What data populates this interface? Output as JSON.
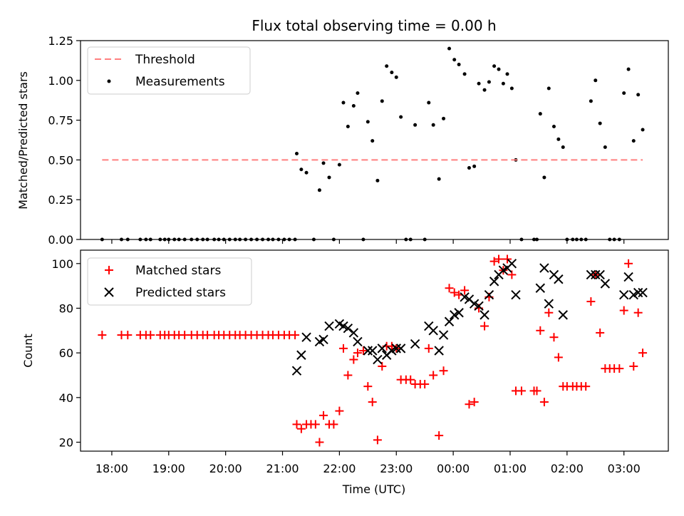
{
  "figure": {
    "title": "Flux total observing time = 0.00 h"
  },
  "chart_data": [
    {
      "type": "scatter",
      "panel": "top",
      "xlabel": "",
      "ylabel": "Matched/Predicted stars",
      "ylim": [
        0,
        1.25
      ],
      "yticks": [
        "0.00",
        "0.25",
        "0.50",
        "0.75",
        "1.00",
        "1.25"
      ],
      "xlim_hours": [
        17.45,
        27.78
      ],
      "grid": false,
      "legend_position": "top-left",
      "threshold": {
        "name": "Threshold",
        "y": 0.5,
        "x_range_hours": [
          17.83,
          27.33
        ],
        "color": "#ff7f7f"
      },
      "series": [
        {
          "name": "Measurements",
          "color": "#000000",
          "points": [
            [
              17.83,
              0
            ],
            [
              18.17,
              0
            ],
            [
              18.28,
              0
            ],
            [
              18.5,
              0
            ],
            [
              18.6,
              0
            ],
            [
              18.68,
              0
            ],
            [
              18.85,
              0
            ],
            [
              18.93,
              0
            ],
            [
              19.0,
              0
            ],
            [
              19.1,
              0
            ],
            [
              19.18,
              0
            ],
            [
              19.28,
              0
            ],
            [
              19.4,
              0
            ],
            [
              19.5,
              0
            ],
            [
              19.6,
              0
            ],
            [
              19.68,
              0
            ],
            [
              19.8,
              0
            ],
            [
              19.88,
              0
            ],
            [
              19.97,
              0
            ],
            [
              20.07,
              0
            ],
            [
              20.17,
              0
            ],
            [
              20.25,
              0
            ],
            [
              20.35,
              0
            ],
            [
              20.45,
              0
            ],
            [
              20.55,
              0
            ],
            [
              20.65,
              0
            ],
            [
              20.75,
              0
            ],
            [
              20.83,
              0
            ],
            [
              20.93,
              0
            ],
            [
              21.03,
              0
            ],
            [
              21.12,
              0
            ],
            [
              21.22,
              0
            ],
            [
              21.25,
              0.54
            ],
            [
              21.33,
              0.44
            ],
            [
              21.42,
              0.42
            ],
            [
              21.55,
              0
            ],
            [
              21.65,
              0.31
            ],
            [
              21.72,
              0.48
            ],
            [
              21.82,
              0.39
            ],
            [
              21.9,
              0
            ],
            [
              22.0,
              0.47
            ],
            [
              22.07,
              0.86
            ],
            [
              22.15,
              0.71
            ],
            [
              22.25,
              0.84
            ],
            [
              22.32,
              0.92
            ],
            [
              22.42,
              0
            ],
            [
              22.5,
              0.74
            ],
            [
              22.58,
              0.62
            ],
            [
              22.67,
              0.37
            ],
            [
              22.75,
              0.87
            ],
            [
              22.83,
              1.09
            ],
            [
              22.92,
              1.05
            ],
            [
              23.0,
              1.02
            ],
            [
              23.08,
              0.77
            ],
            [
              23.17,
              0
            ],
            [
              23.25,
              0
            ],
            [
              23.33,
              0.72
            ],
            [
              23.5,
              0
            ],
            [
              23.57,
              0.86
            ],
            [
              23.65,
              0.72
            ],
            [
              23.75,
              0.38
            ],
            [
              23.83,
              0.76
            ],
            [
              23.93,
              1.2
            ],
            [
              24.02,
              1.13
            ],
            [
              24.1,
              1.1
            ],
            [
              24.2,
              1.04
            ],
            [
              24.28,
              0.45
            ],
            [
              24.37,
              0.46
            ],
            [
              24.45,
              0.98
            ],
            [
              24.55,
              0.94
            ],
            [
              24.63,
              0.99
            ],
            [
              24.72,
              1.09
            ],
            [
              24.8,
              1.07
            ],
            [
              24.88,
              0.98
            ],
            [
              24.95,
              1.04
            ],
            [
              25.03,
              0.95
            ],
            [
              25.1,
              0.5
            ],
            [
              25.2,
              0
            ],
            [
              25.42,
              0
            ],
            [
              25.47,
              0
            ],
            [
              25.53,
              0.79
            ],
            [
              25.6,
              0.39
            ],
            [
              25.68,
              0.95
            ],
            [
              25.77,
              0.71
            ],
            [
              25.85,
              0.63
            ],
            [
              25.93,
              0.58
            ],
            [
              26.0,
              0
            ],
            [
              26.1,
              0
            ],
            [
              26.17,
              0
            ],
            [
              26.25,
              0
            ],
            [
              26.33,
              0
            ],
            [
              26.42,
              0.87
            ],
            [
              26.5,
              1.0
            ],
            [
              26.58,
              0.73
            ],
            [
              26.67,
              0.58
            ],
            [
              26.75,
              0
            ],
            [
              26.83,
              0
            ],
            [
              26.92,
              0
            ],
            [
              27.0,
              0.92
            ],
            [
              27.08,
              1.07
            ],
            [
              27.17,
              0.62
            ],
            [
              27.25,
              0.91
            ],
            [
              27.33,
              0.69
            ]
          ]
        }
      ]
    },
    {
      "type": "scatter",
      "panel": "bottom",
      "xlabel": "Time (UTC)",
      "ylabel": "Count",
      "ylim": [
        16,
        106
      ],
      "yticks": [
        "20",
        "40",
        "60",
        "80",
        "100"
      ],
      "xlim_hours": [
        17.45,
        27.78
      ],
      "xticks": [
        "18:00",
        "19:00",
        "20:00",
        "21:00",
        "22:00",
        "23:00",
        "00:00",
        "01:00",
        "02:00",
        "03:00"
      ],
      "grid": false,
      "legend_position": "top-left",
      "series": [
        {
          "name": "Matched stars",
          "marker": "plus",
          "color": "#ff0000",
          "points": [
            [
              17.83,
              68
            ],
            [
              18.17,
              68
            ],
            [
              18.28,
              68
            ],
            [
              18.5,
              68
            ],
            [
              18.6,
              68
            ],
            [
              18.68,
              68
            ],
            [
              18.85,
              68
            ],
            [
              18.93,
              68
            ],
            [
              19.0,
              68
            ],
            [
              19.1,
              68
            ],
            [
              19.18,
              68
            ],
            [
              19.28,
              68
            ],
            [
              19.4,
              68
            ],
            [
              19.5,
              68
            ],
            [
              19.6,
              68
            ],
            [
              19.68,
              68
            ],
            [
              19.8,
              68
            ],
            [
              19.88,
              68
            ],
            [
              19.97,
              68
            ],
            [
              20.07,
              68
            ],
            [
              20.17,
              68
            ],
            [
              20.25,
              68
            ],
            [
              20.35,
              68
            ],
            [
              20.45,
              68
            ],
            [
              20.55,
              68
            ],
            [
              20.65,
              68
            ],
            [
              20.75,
              68
            ],
            [
              20.83,
              68
            ],
            [
              20.93,
              68
            ],
            [
              21.03,
              68
            ],
            [
              21.12,
              68
            ],
            [
              21.22,
              68
            ],
            [
              21.25,
              28
            ],
            [
              21.33,
              26
            ],
            [
              21.42,
              28
            ],
            [
              21.5,
              28
            ],
            [
              21.58,
              28
            ],
            [
              21.65,
              20
            ],
            [
              21.72,
              32
            ],
            [
              21.82,
              28
            ],
            [
              21.9,
              28
            ],
            [
              22.0,
              34
            ],
            [
              22.07,
              62
            ],
            [
              22.15,
              50
            ],
            [
              22.25,
              57
            ],
            [
              22.32,
              60
            ],
            [
              22.42,
              61
            ],
            [
              22.5,
              45
            ],
            [
              22.58,
              38
            ],
            [
              22.67,
              21
            ],
            [
              22.75,
              54
            ],
            [
              22.83,
              63
            ],
            [
              22.92,
              63
            ],
            [
              23.0,
              62
            ],
            [
              23.08,
              48
            ],
            [
              23.17,
              48
            ],
            [
              23.25,
              48
            ],
            [
              23.33,
              46
            ],
            [
              23.42,
              46
            ],
            [
              23.5,
              46
            ],
            [
              23.57,
              62
            ],
            [
              23.65,
              50
            ],
            [
              23.75,
              23
            ],
            [
              23.83,
              52
            ],
            [
              23.93,
              89
            ],
            [
              24.02,
              87
            ],
            [
              24.1,
              86
            ],
            [
              24.2,
              88
            ],
            [
              24.28,
              37
            ],
            [
              24.37,
              38
            ],
            [
              24.45,
              80
            ],
            [
              24.55,
              72
            ],
            [
              24.63,
              85
            ],
            [
              24.72,
              101
            ],
            [
              24.8,
              102
            ],
            [
              24.88,
              97
            ],
            [
              24.95,
              102
            ],
            [
              25.03,
              95
            ],
            [
              25.1,
              43
            ],
            [
              25.2,
              43
            ],
            [
              25.42,
              43
            ],
            [
              25.47,
              43
            ],
            [
              25.53,
              70
            ],
            [
              25.6,
              38
            ],
            [
              25.68,
              78
            ],
            [
              25.77,
              67
            ],
            [
              25.85,
              58
            ],
            [
              25.93,
              45
            ],
            [
              26.0,
              45
            ],
            [
              26.1,
              45
            ],
            [
              26.17,
              45
            ],
            [
              26.25,
              45
            ],
            [
              26.33,
              45
            ],
            [
              26.42,
              83
            ],
            [
              26.5,
              95
            ],
            [
              26.58,
              69
            ],
            [
              26.67,
              53
            ],
            [
              26.75,
              53
            ],
            [
              26.83,
              53
            ],
            [
              26.92,
              53
            ],
            [
              27.0,
              79
            ],
            [
              27.08,
              100
            ],
            [
              27.17,
              54
            ],
            [
              27.25,
              78
            ],
            [
              27.33,
              60
            ]
          ]
        },
        {
          "name": "Predicted stars",
          "marker": "x",
          "color": "#000000",
          "points": [
            [
              21.25,
              52
            ],
            [
              21.33,
              59
            ],
            [
              21.42,
              67
            ],
            [
              21.65,
              65
            ],
            [
              21.72,
              66
            ],
            [
              21.82,
              72
            ],
            [
              22.0,
              73
            ],
            [
              22.07,
              72
            ],
            [
              22.15,
              71
            ],
            [
              22.25,
              69
            ],
            [
              22.32,
              65
            ],
            [
              22.5,
              61
            ],
            [
              22.58,
              61
            ],
            [
              22.67,
              57
            ],
            [
              22.75,
              62
            ],
            [
              22.83,
              59
            ],
            [
              22.92,
              61
            ],
            [
              23.0,
              62
            ],
            [
              23.08,
              62
            ],
            [
              23.33,
              64
            ],
            [
              23.57,
              72
            ],
            [
              23.65,
              70
            ],
            [
              23.75,
              61
            ],
            [
              23.83,
              68
            ],
            [
              23.93,
              74
            ],
            [
              24.02,
              77
            ],
            [
              24.1,
              78
            ],
            [
              24.2,
              85
            ],
            [
              24.28,
              84
            ],
            [
              24.37,
              82
            ],
            [
              24.45,
              81
            ],
            [
              24.55,
              77
            ],
            [
              24.63,
              86
            ],
            [
              24.72,
              92
            ],
            [
              24.8,
              95
            ],
            [
              24.88,
              97
            ],
            [
              24.95,
              98
            ],
            [
              25.03,
              100
            ],
            [
              25.1,
              86
            ],
            [
              25.53,
              89
            ],
            [
              25.6,
              98
            ],
            [
              25.68,
              82
            ],
            [
              25.77,
              95
            ],
            [
              25.85,
              93
            ],
            [
              25.93,
              77
            ],
            [
              26.42,
              95
            ],
            [
              26.5,
              95
            ],
            [
              26.58,
              95
            ],
            [
              26.67,
              91
            ],
            [
              27.0,
              86
            ],
            [
              27.08,
              94
            ],
            [
              27.17,
              86
            ],
            [
              27.25,
              87
            ],
            [
              27.33,
              87
            ]
          ]
        }
      ]
    }
  ]
}
